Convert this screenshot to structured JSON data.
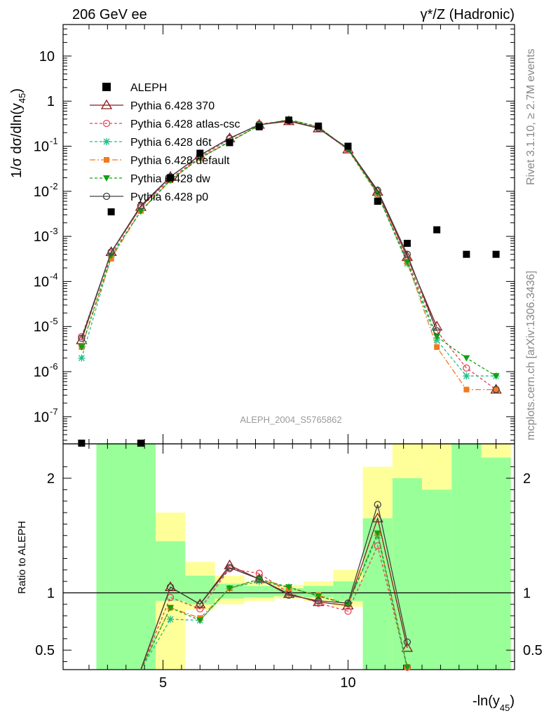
{
  "header": {
    "left_title": "206 GeV ee",
    "right_title": "γ*/Z (Hadronic)"
  },
  "side_labels": {
    "rivet": "Rivet 3.1.10, ≥ 2.7M events",
    "mcplots": "mcplots.cern.ch [arXiv:1306.3436]"
  },
  "watermark": "ALEPH_2004_S5765862",
  "axes": {
    "ylabel_top": "1/σ  dσ/dln(y45)",
    "ylabel_bottom": "Ratio to ALEPH",
    "xlabel": "-ln(y45)"
  },
  "colors": {
    "data": "#000000",
    "p370": "#8b1a1a",
    "atlas": "#e8405a",
    "d6t": "#1fbf8a",
    "default": "#f07a20",
    "dw": "#12a012",
    "p0": "#404040",
    "band_green": "#99ff99",
    "band_yellow": "#ffff99"
  },
  "chart_data": [
    {
      "type": "line",
      "panel": "main",
      "yscale": "log",
      "ylim": [
        2.5e-08,
        50
      ],
      "xlim": [
        2.3,
        14.5
      ],
      "yticks": [
        "10^-7",
        "10^-6",
        "10^-5",
        "10^-4",
        "10^-3",
        "10^-2",
        "10^-1",
        "1",
        "10"
      ],
      "x": [
        2.8,
        3.6,
        4.4,
        5.2,
        6.0,
        6.8,
        7.6,
        8.4,
        9.2,
        10.0,
        10.8,
        11.6,
        12.4,
        13.2,
        14.0
      ],
      "data": {
        "name": "ALEPH",
        "values": [
          2.5e-08,
          0.0035,
          2.5e-08,
          0.02,
          0.07,
          0.12,
          0.27,
          0.38,
          0.28,
          0.1,
          0.006,
          0.0007,
          0.0014,
          0.0004,
          0.0004
        ]
      },
      "series": [
        {
          "name": "Pythia 6.428 370",
          "values": [
            5e-06,
            0.00045,
            0.0045,
            0.021,
            0.063,
            0.15,
            0.3,
            0.36,
            0.25,
            0.085,
            0.0098,
            0.00035,
            1e-05,
            null,
            4e-07
          ]
        },
        {
          "name": "Pythia 6.428 atlas-csc",
          "values": [
            6e-06,
            0.00042,
            0.0044,
            0.019,
            0.058,
            0.145,
            0.31,
            0.37,
            0.26,
            0.083,
            0.0085,
            0.0003,
            8e-06,
            1.2e-06,
            4e-07
          ]
        },
        {
          "name": "Pythia 6.428 d6t",
          "values": [
            2e-06,
            0.00035,
            0.0037,
            0.018,
            0.055,
            0.13,
            0.29,
            0.39,
            0.27,
            0.085,
            0.0085,
            0.00025,
            5e-06,
            8e-07,
            8e-07
          ]
        },
        {
          "name": "Pythia 6.428 default",
          "values": [
            3.5e-06,
            0.00032,
            0.0037,
            0.0175,
            0.055,
            0.125,
            0.29,
            0.39,
            0.27,
            0.085,
            0.0088,
            0.00027,
            3.5e-06,
            4e-07,
            4e-07
          ]
        },
        {
          "name": "Pythia 6.428 dw",
          "values": [
            3.5e-06,
            0.00038,
            0.0036,
            0.0175,
            0.054,
            0.125,
            0.29,
            0.39,
            0.27,
            0.085,
            0.009,
            0.00027,
            6e-06,
            2e-06,
            8e-07
          ]
        },
        {
          "name": "Pythia 6.428 p0",
          "values": [
            5.5e-06,
            0.00045,
            0.0048,
            0.021,
            0.063,
            0.15,
            0.3,
            0.37,
            0.25,
            0.09,
            0.0105,
            0.0004,
            8e-06,
            null,
            4e-07
          ]
        }
      ]
    },
    {
      "type": "line",
      "panel": "ratio",
      "ylim": [
        0.33,
        2.3
      ],
      "xlim": [
        2.3,
        14.5
      ],
      "xticks": [
        "5",
        "10"
      ],
      "yticks": [
        "0.5",
        "1",
        "2"
      ],
      "reference": 1.0,
      "bands": [
        {
          "x0": 3.2,
          "x1": 4.8,
          "green": [
            0.33,
            2.3
          ],
          "yellow": [
            0.33,
            2.3
          ]
        },
        {
          "x0": 4.8,
          "x1": 5.6,
          "green": [
            0.93,
            1.45
          ],
          "yellow": [
            0.33,
            1.7
          ]
        },
        {
          "x0": 5.6,
          "x1": 6.4,
          "green": [
            0.9,
            1.15
          ],
          "yellow": [
            0.85,
            1.27
          ]
        },
        {
          "x0": 6.4,
          "x1": 7.2,
          "green": [
            0.95,
            1.08
          ],
          "yellow": [
            0.9,
            1.15
          ]
        },
        {
          "x0": 7.2,
          "x1": 8.0,
          "green": [
            0.96,
            1.06
          ],
          "yellow": [
            0.93,
            1.1
          ]
        },
        {
          "x0": 8.0,
          "x1": 8.8,
          "green": [
            0.97,
            1.04
          ],
          "yellow": [
            0.95,
            1.07
          ]
        },
        {
          "x0": 8.8,
          "x1": 9.6,
          "green": [
            0.96,
            1.06
          ],
          "yellow": [
            0.93,
            1.1
          ]
        },
        {
          "x0": 9.6,
          "x1": 10.4,
          "green": [
            0.93,
            1.1
          ],
          "yellow": [
            0.88,
            1.2
          ]
        },
        {
          "x0": 10.4,
          "x1": 11.2,
          "green": [
            0.33,
            1.65
          ],
          "yellow": [
            0.33,
            2.1
          ]
        },
        {
          "x0": 11.2,
          "x1": 12.0,
          "green": [
            0.33,
            2.0
          ],
          "yellow": [
            0.33,
            2.3
          ]
        },
        {
          "x0": 12.0,
          "x1": 12.8,
          "green": [
            0.33,
            1.9
          ],
          "yellow": [
            0.33,
            2.3
          ]
        },
        {
          "x0": 12.8,
          "x1": 13.6,
          "green": [
            0.33,
            2.3
          ],
          "yellow": [
            0.33,
            2.3
          ]
        },
        {
          "x0": 13.6,
          "x1": 14.4,
          "green": [
            0.33,
            2.18
          ],
          "yellow": [
            0.33,
            2.3
          ]
        }
      ],
      "x": [
        4.4,
        5.2,
        6.0,
        6.8,
        7.6,
        8.4,
        9.2,
        10.0,
        10.8,
        11.6
      ],
      "series": [
        {
          "name": "Pythia 6.428 370",
          "values": [
            0.1,
            1.05,
            0.9,
            1.24,
            1.12,
            0.99,
            0.92,
            0.89,
            1.65,
            0.52
          ]
        },
        {
          "name": "Pythia 6.428 atlas-csc",
          "values": [
            0.1,
            0.96,
            0.86,
            1.21,
            1.17,
            1.0,
            0.91,
            0.84,
            1.41,
            0.35
          ]
        },
        {
          "name": "Pythia 6.428 d6t",
          "values": [
            0.1,
            0.77,
            0.76,
            1.04,
            1.1,
            1.05,
            0.97,
            0.9,
            1.5,
            0.32
          ]
        },
        {
          "name": "Pythia 6.428 default",
          "values": [
            0.1,
            0.87,
            0.78,
            1.04,
            1.12,
            1.04,
            0.98,
            0.9,
            1.52,
            0.35
          ]
        },
        {
          "name": "Pythia 6.428 dw",
          "values": [
            0.1,
            0.87,
            0.76,
            1.04,
            1.12,
            1.05,
            0.97,
            0.9,
            1.52,
            0.35
          ]
        },
        {
          "name": "Pythia 6.428 p0",
          "values": [
            0.1,
            1.05,
            0.9,
            1.22,
            1.12,
            0.98,
            0.93,
            0.91,
            1.77,
            0.57
          ]
        }
      ]
    }
  ]
}
